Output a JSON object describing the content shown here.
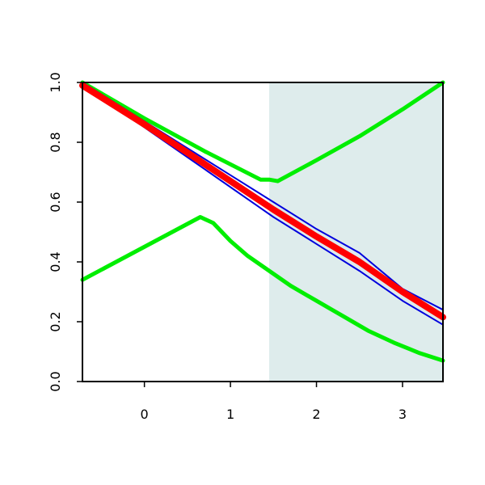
{
  "chart_data": {
    "type": "line",
    "title": "",
    "xlabel": "",
    "ylabel": "",
    "xlim": [
      -0.72,
      3.47
    ],
    "ylim": [
      0,
      1
    ],
    "x_ticks": [
      0,
      1,
      2,
      3
    ],
    "x_tick_labels": [
      "0",
      "1",
      "2",
      "3"
    ],
    "y_ticks": [
      0,
      0.2,
      0.4,
      0.6,
      0.8,
      1
    ],
    "y_tick_labels": [
      "0.0",
      "0.2",
      "0.4",
      "0.6",
      "0.8",
      "1.0"
    ],
    "grid": false,
    "legend": "none",
    "shaded_region": {
      "x_from": 1.45,
      "x_to": 3.47,
      "color": "#deecec"
    },
    "series": [
      {
        "color": "#00ee00",
        "style": "thick",
        "x": [
          -0.72,
          0.65,
          0.8,
          1.0,
          1.2,
          1.45,
          1.7,
          2.0,
          2.3,
          2.6,
          2.9,
          3.2,
          3.47
        ],
        "y": [
          0.34,
          0.55,
          0.53,
          0.47,
          0.42,
          0.37,
          0.32,
          0.27,
          0.22,
          0.17,
          0.13,
          0.095,
          0.07
        ]
      },
      {
        "color": "#00ee00",
        "style": "thick",
        "x": [
          -0.72,
          0.0,
          0.7,
          1.35,
          1.45,
          1.55,
          2.0,
          2.5,
          3.0,
          3.47
        ],
        "y": [
          1.0,
          0.88,
          0.77,
          0.675,
          0.675,
          0.67,
          0.74,
          0.82,
          0.91,
          1.0
        ]
      },
      {
        "color": "#0000dd",
        "style": "thin",
        "x": [
          -0.72,
          0.0,
          0.5,
          1.0,
          1.5,
          2.0,
          2.5,
          3.0,
          3.47
        ],
        "y": [
          1.0,
          0.87,
          0.78,
          0.69,
          0.6,
          0.51,
          0.43,
          0.31,
          0.24
        ]
      },
      {
        "color": "#0000dd",
        "style": "thin",
        "x": [
          -0.72,
          0.0,
          0.5,
          1.0,
          1.5,
          2.0,
          2.5,
          3.0,
          3.47
        ],
        "y": [
          0.99,
          0.85,
          0.75,
          0.65,
          0.55,
          0.46,
          0.37,
          0.27,
          0.19
        ]
      },
      {
        "color": "#ff0000",
        "style": "thick",
        "x": [
          -0.72,
          0.0,
          0.5,
          1.0,
          1.5,
          2.0,
          2.5,
          3.0,
          3.47
        ],
        "y": [
          0.99,
          0.86,
          0.765,
          0.67,
          0.575,
          0.485,
          0.4,
          0.3,
          0.215
        ]
      }
    ]
  }
}
